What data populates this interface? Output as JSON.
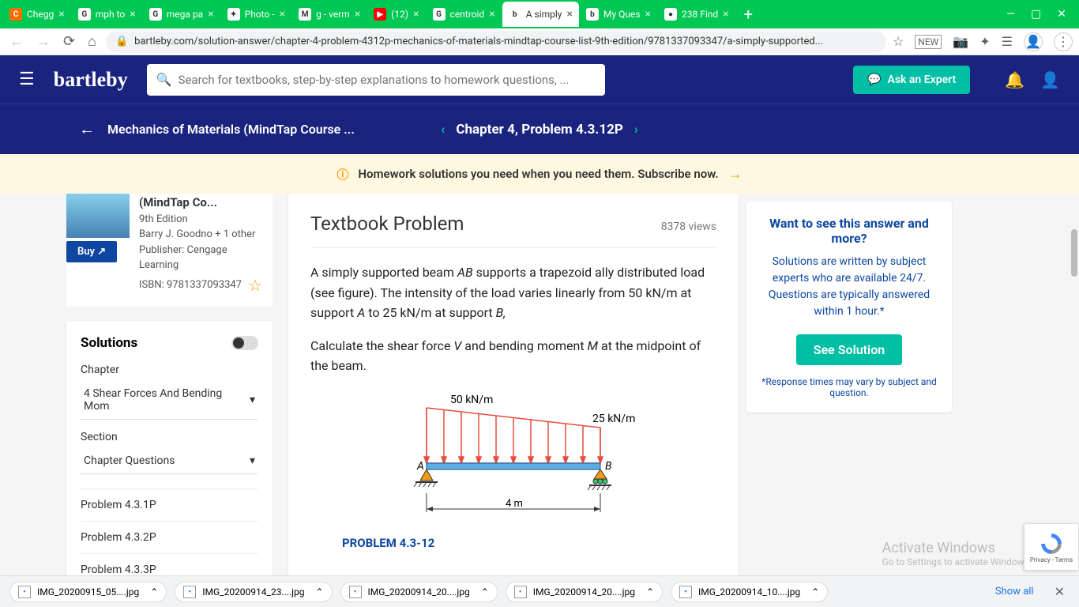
{
  "browser": {
    "tabs": [
      {
        "favicon_bg": "#ff6d00",
        "favicon_text": "C",
        "title": "Chegg"
      },
      {
        "favicon_bg": "#fff",
        "favicon_text": "G",
        "title": "mph to"
      },
      {
        "favicon_bg": "#fff",
        "favicon_text": "G",
        "title": "mega pa"
      },
      {
        "favicon_bg": "#fff",
        "favicon_text": "✦",
        "title": "Photo -"
      },
      {
        "favicon_bg": "#fff",
        "favicon_text": "M",
        "title": "g - verm"
      },
      {
        "favicon_bg": "#ff0000",
        "favicon_text": "▶",
        "title": "(12)"
      },
      {
        "favicon_bg": "#fff",
        "favicon_text": "G",
        "title": "centroid"
      },
      {
        "favicon_bg": "#fff",
        "favicon_text": "b",
        "title": "A simply",
        "active": true
      },
      {
        "favicon_bg": "#fff",
        "favicon_text": "b",
        "title": "My Ques"
      },
      {
        "favicon_bg": "#fff",
        "favicon_text": "●",
        "title": "238 Find"
      }
    ],
    "url": "bartleby.com/solution-answer/chapter-4-problem-4312p-mechanics-of-materials-mindtap-course-list-9th-edition/9781337093347/a-simply-supported..."
  },
  "header": {
    "logo": "bartleby",
    "search_placeholder": "Search for textbooks, step-by-step explanations to homework questions, ...",
    "ask_expert": "Ask an Expert"
  },
  "breadcrumb": {
    "course": "Mechanics of Materials (MindTap Course ...",
    "problem": "Chapter 4, Problem 4.3.12P"
  },
  "promo": "Homework solutions you need when you need them. Subscribe now.",
  "book": {
    "title": "(MindTap Co...",
    "edition": "9th Edition",
    "authors": "Barry J. Goodno + 1 other",
    "publisher": "Publisher: Cengage Learning",
    "isbn": "ISBN: 9781337093347",
    "buy": "Buy ↗"
  },
  "solutions": {
    "title": "Solutions",
    "chapter_label": "Chapter",
    "chapter_value": "4 Shear Forces And Bending Mom",
    "section_label": "Section",
    "section_value": "Chapter Questions",
    "problems": [
      "Problem 4.3.1P",
      "Problem 4.3.2P",
      "Problem 4.3.3P"
    ]
  },
  "problem": {
    "title": "Textbook Problem",
    "views": "8378 views",
    "para1_a": "A simply supported beam ",
    "para1_b": " supports a trapezoid ally distributed load (see figure). The intensity of the load varies linearly from 50 kN/m at support ",
    "para1_c": " to 25 kN/m at support ",
    "para2_a": "Calculate the shear force ",
    "para2_b": " and bending moment ",
    "para2_c": " at the midpoint of the beam.",
    "AB": "AB",
    "A": "A",
    "B": "B,",
    "V": "V",
    "M": "M",
    "figure_label": "PROBLEM 4.3-12",
    "beam": {
      "load_left": "50 kN/m",
      "load_right": "25 kN/m",
      "label_left": "A",
      "label_right": "B",
      "span": "4 m",
      "colors": {
        "beam_fill": "#5dade2",
        "beam_stroke": "#1a5490",
        "arrow": "#e74c3c",
        "support": "#f39c12"
      }
    }
  },
  "cta": {
    "title": "Want to see this answer and more?",
    "text": "Solutions are written by subject experts who are available 24/7. Questions are typically answered within 1 hour.*",
    "button": "See Solution",
    "note": "*Response times may vary by subject and question."
  },
  "downloads": [
    "IMG_20200915_05....jpg",
    "IMG_20200914_23....jpg",
    "IMG_20200914_20....jpg",
    "IMG_20200914_20....jpg",
    "IMG_20200914_10....jpg"
  ],
  "show_all": "Show all",
  "watermark": {
    "title": "Activate Windows",
    "sub": "Go to Settings to activate Windows."
  },
  "recaptcha": "Privacy - Terms"
}
